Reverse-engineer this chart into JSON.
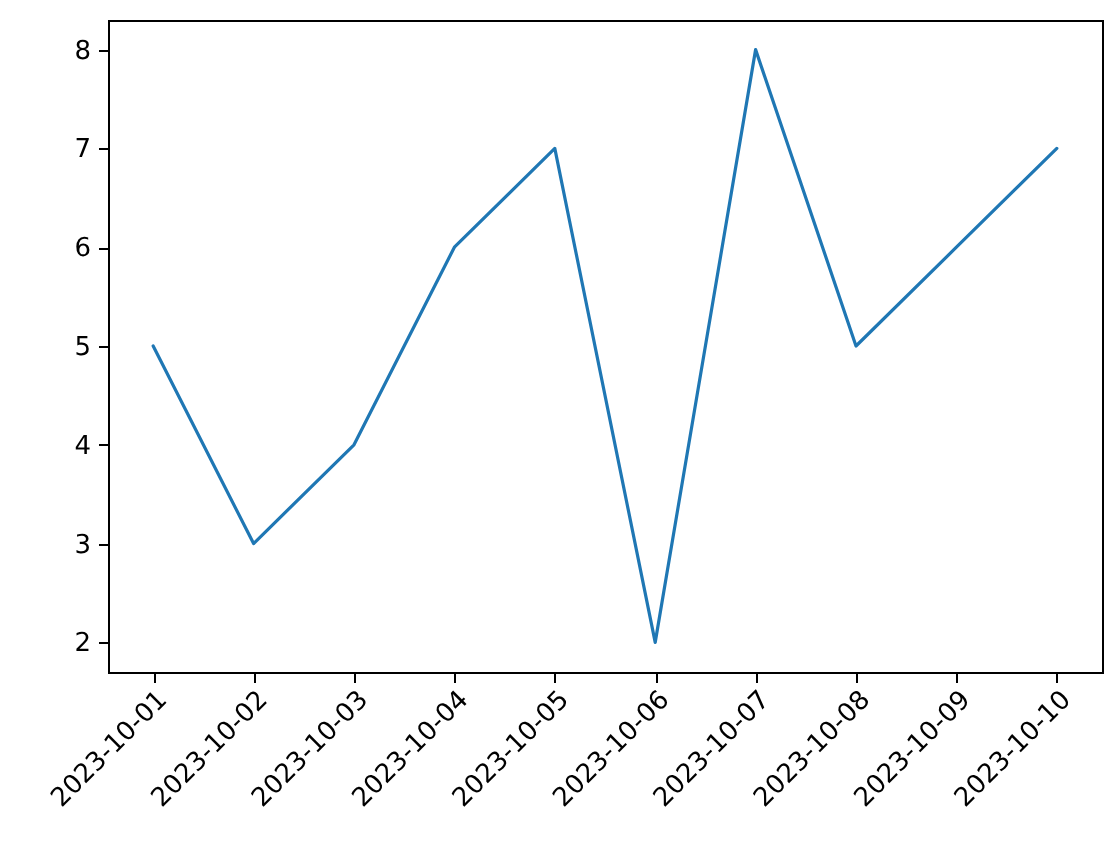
{
  "chart_data": {
    "type": "line",
    "x": [
      "2023-10-01",
      "2023-10-02",
      "2023-10-03",
      "2023-10-04",
      "2023-10-05",
      "2023-10-06",
      "2023-10-07",
      "2023-10-08",
      "2023-10-09",
      "2023-10-10"
    ],
    "series": [
      {
        "color": "#1f77b4",
        "values": [
          5,
          3,
          4,
          6,
          7,
          2,
          8,
          5,
          6,
          7
        ]
      }
    ],
    "xlim": [
      "2023-09-30T13:12",
      "2023-10-10T10:48"
    ],
    "xticks": [
      "2023-10-01",
      "2023-10-02",
      "2023-10-03",
      "2023-10-04",
      "2023-10-05",
      "2023-10-06",
      "2023-10-07",
      "2023-10-08",
      "2023-10-09",
      "2023-10-10"
    ],
    "ylim": [
      1.7,
      8.3
    ],
    "yticks": [
      2,
      3,
      4,
      5,
      6,
      7,
      8
    ],
    "grid": false,
    "legend": false,
    "marker": "none",
    "line_style": "solid"
  }
}
